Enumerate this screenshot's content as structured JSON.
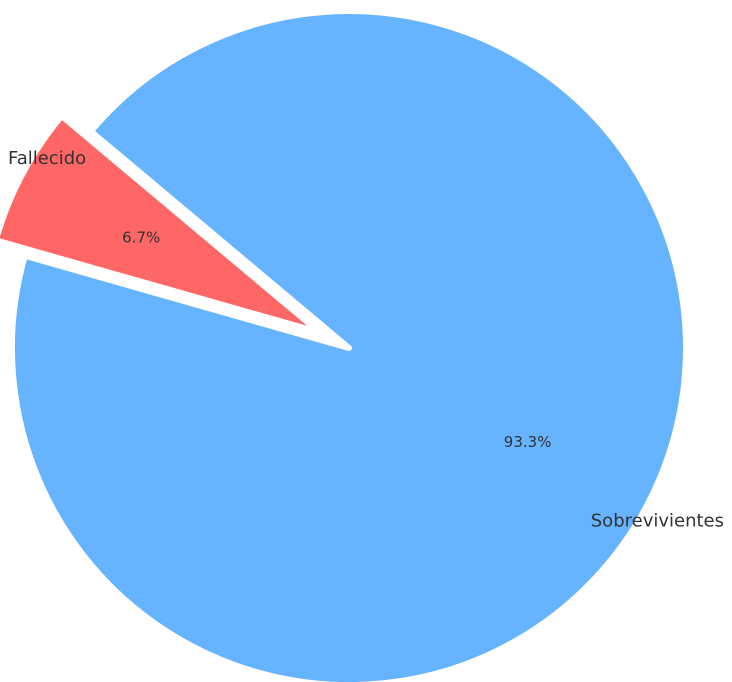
{
  "chart_data": {
    "type": "pie",
    "categories": [
      "Fallecido",
      "Sobrevivientes"
    ],
    "values": [
      6.7,
      93.3
    ],
    "percent_labels": [
      "6.7%",
      "93.3%"
    ],
    "colors": [
      "#ff6666",
      "#66b3ff"
    ],
    "exploded": [
      true,
      false
    ],
    "start_angle_deg": 140,
    "title": "",
    "legend": "none"
  }
}
